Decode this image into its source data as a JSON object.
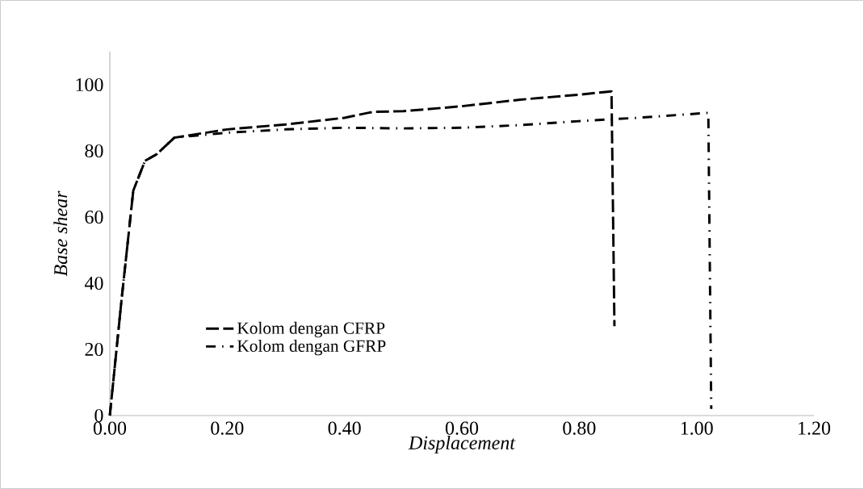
{
  "chart_data": {
    "type": "line",
    "xlabel": "Displacement",
    "ylabel": "Base shear",
    "xlim": [
      0,
      1.2
    ],
    "ylim": [
      0,
      110
    ],
    "xticks": [
      {
        "value": 0,
        "label": "0.00"
      },
      {
        "value": 0.2,
        "label": "0.20"
      },
      {
        "value": 0.4,
        "label": "0.40"
      },
      {
        "value": 0.6,
        "label": "0.60"
      },
      {
        "value": 0.8,
        "label": "0.80"
      },
      {
        "value": 1.0,
        "label": "1.00"
      },
      {
        "value": 1.2,
        "label": "1.20"
      }
    ],
    "yticks": [
      0,
      20,
      40,
      60,
      80,
      100
    ],
    "grid": false,
    "legend": "bottom left",
    "marker": "none",
    "series": [
      {
        "name": "Kolom dengan CFRP",
        "color": "#000000",
        "line_style": "dashed",
        "x": [
          0,
          0.02,
          0.04,
          0.06,
          0.08,
          0.11,
          0.2,
          0.3,
          0.4,
          0.44,
          0.45,
          0.5,
          0.6,
          0.7,
          0.8,
          0.855,
          0.86
        ],
        "values": [
          0,
          35,
          68,
          77,
          79,
          84,
          86.5,
          88,
          90,
          91.5,
          91.8,
          92,
          93.5,
          95.5,
          97,
          98,
          27
        ]
      },
      {
        "name": "Kolom dengan GFRP",
        "color": "#000000",
        "line_style": "dashdot",
        "x": [
          0,
          0.02,
          0.04,
          0.06,
          0.08,
          0.11,
          0.2,
          0.3,
          0.4,
          0.5,
          0.6,
          0.7,
          0.8,
          0.9,
          1.02,
          1.025
        ],
        "values": [
          0,
          35,
          68,
          77,
          79,
          84,
          85.5,
          86.5,
          87,
          86.8,
          87,
          87.8,
          89,
          90,
          91.5,
          2
        ]
      }
    ]
  }
}
